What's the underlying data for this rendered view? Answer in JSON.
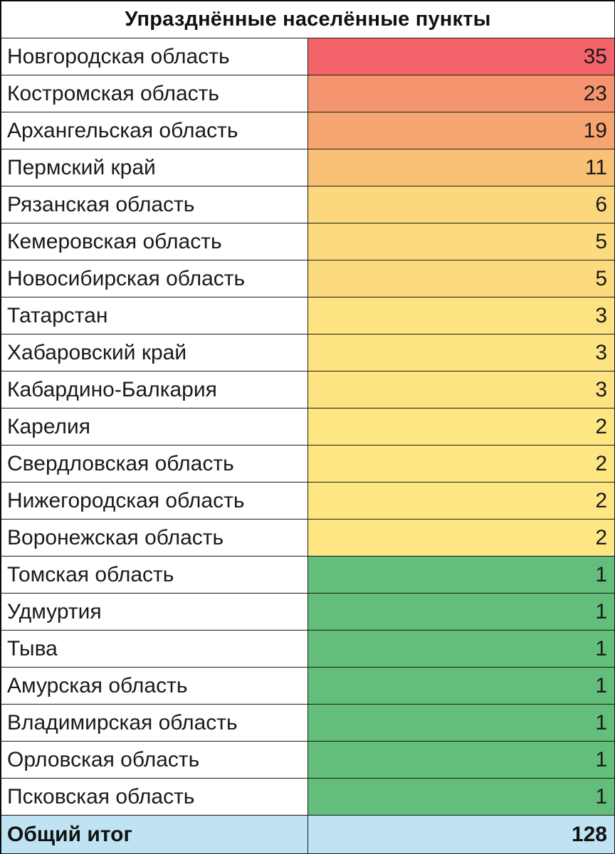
{
  "title": "Упразднённые населённые пункты",
  "rows": [
    {
      "region": "Новгородская область",
      "value": "35",
      "color": "#f2636a"
    },
    {
      "region": "Костромская область",
      "value": "23",
      "color": "#f5956f"
    },
    {
      "region": "Архангельская область",
      "value": "19",
      "color": "#f6a470"
    },
    {
      "region": "Пермский край",
      "value": "11",
      "color": "#f8c175"
    },
    {
      "region": "Рязанская область",
      "value": "6",
      "color": "#fbd77d"
    },
    {
      "region": "Кемеровская область",
      "value": "5",
      "color": "#fcdb7f"
    },
    {
      "region": "Новосибирская область",
      "value": "5",
      "color": "#fcdb7f"
    },
    {
      "region": "Татарстан",
      "value": "3",
      "color": "#fde381"
    },
    {
      "region": "Хабаровский край",
      "value": "3",
      "color": "#fde381"
    },
    {
      "region": "Кабардино-Балкария",
      "value": "3",
      "color": "#fde381"
    },
    {
      "region": "Карелия",
      "value": "2",
      "color": "#fee783"
    },
    {
      "region": "Свердловская область",
      "value": "2",
      "color": "#fee783"
    },
    {
      "region": "Нижегородская область",
      "value": "2",
      "color": "#fee783"
    },
    {
      "region": "Воронежская область",
      "value": "2",
      "color": "#fee783"
    },
    {
      "region": "Томская область",
      "value": "1",
      "color": "#63be7b"
    },
    {
      "region": "Удмуртия",
      "value": "1",
      "color": "#63be7b"
    },
    {
      "region": "Тыва",
      "value": "1",
      "color": "#63be7b"
    },
    {
      "region": "Амурская область",
      "value": "1",
      "color": "#63be7b"
    },
    {
      "region": "Владимирская область",
      "value": "1",
      "color": "#63be7b"
    },
    {
      "region": "Орловская область",
      "value": "1",
      "color": "#63be7b"
    },
    {
      "region": "Псковская область",
      "value": "1",
      "color": "#63be7b"
    }
  ],
  "total": {
    "label": "Общий итог",
    "value": "128",
    "color": "#bfe3f2"
  }
}
